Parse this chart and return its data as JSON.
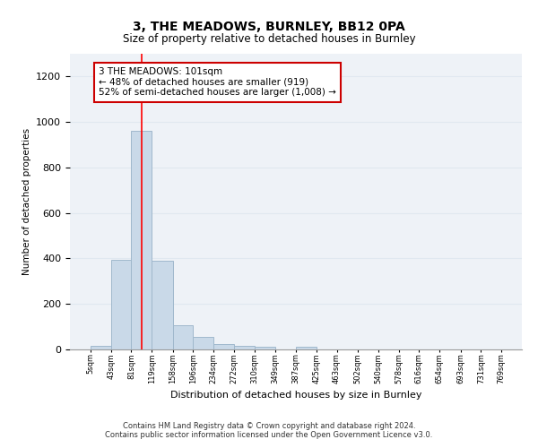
{
  "title": "3, THE MEADOWS, BURNLEY, BB12 0PA",
  "subtitle": "Size of property relative to detached houses in Burnley",
  "xlabel": "Distribution of detached houses by size in Burnley",
  "ylabel": "Number of detached properties",
  "bar_color": "#c9d9e8",
  "bar_edge_color": "#a0b8cc",
  "grid_color": "#e0e8f0",
  "background_color": "#eef2f7",
  "redline_x": 101,
  "annotation_text": "3 THE MEADOWS: 101sqm\n← 48% of detached houses are smaller (919)\n52% of semi-detached houses are larger (1,008) →",
  "annotation_box_color": "#ffffff",
  "annotation_edge_color": "#cc0000",
  "footnote1": "Contains HM Land Registry data © Crown copyright and database right 2024.",
  "footnote2": "Contains public sector information licensed under the Open Government Licence v3.0.",
  "bins": [
    5,
    43,
    81,
    119,
    158,
    196,
    234,
    272,
    310,
    349,
    387,
    425,
    463,
    502,
    540,
    578,
    616,
    654,
    693,
    731,
    769
  ],
  "bin_labels": [
    "5sqm",
    "43sqm",
    "81sqm",
    "119sqm",
    "158sqm",
    "196sqm",
    "234sqm",
    "272sqm",
    "310sqm",
    "349sqm",
    "387sqm",
    "425sqm",
    "463sqm",
    "502sqm",
    "540sqm",
    "578sqm",
    "616sqm",
    "654sqm",
    "693sqm",
    "731sqm",
    "769sqm"
  ],
  "counts": [
    15,
    395,
    960,
    390,
    105,
    55,
    25,
    15,
    12,
    0,
    12,
    0,
    0,
    0,
    0,
    0,
    0,
    0,
    0,
    0
  ],
  "ylim": [
    0,
    1300
  ],
  "yticks": [
    0,
    200,
    400,
    600,
    800,
    1000,
    1200
  ]
}
